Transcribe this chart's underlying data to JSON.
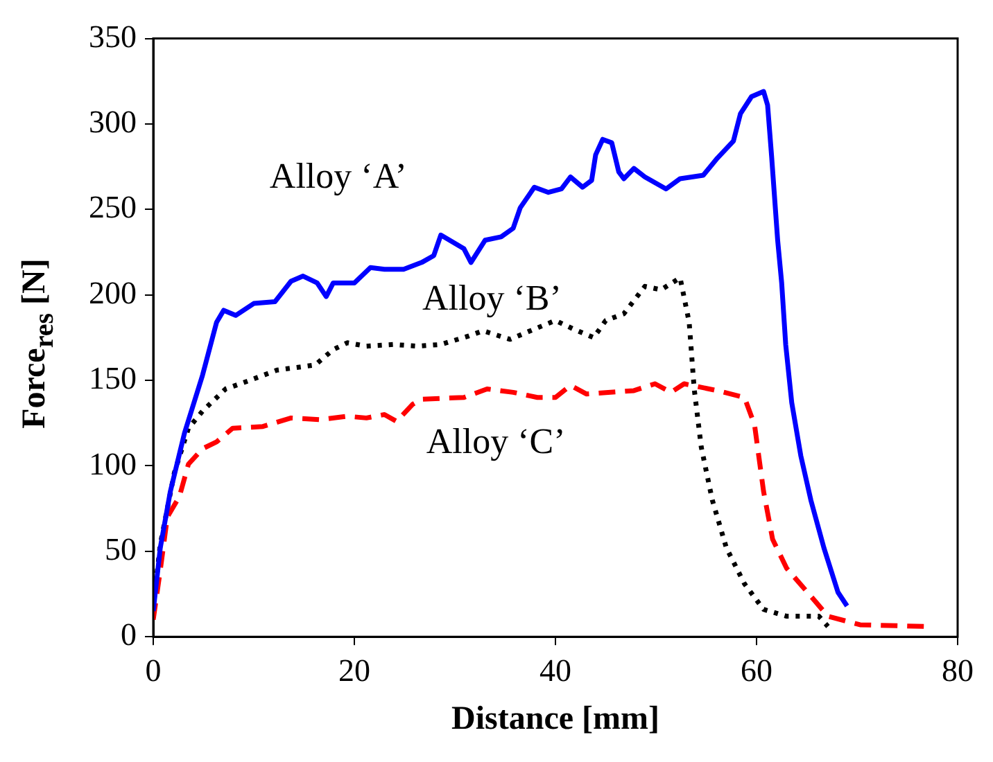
{
  "chart_data": {
    "type": "line",
    "xlabel": "Distance [mm]",
    "ylabel": "Force$_{res}$ [N]",
    "xlim": [
      0,
      80
    ],
    "xticks": [
      0,
      20,
      40,
      60,
      80
    ],
    "ylim": [
      0,
      350
    ],
    "yticks": [
      0,
      50,
      100,
      150,
      200,
      250,
      300,
      350
    ],
    "grid": false,
    "legend": false,
    "marker": "none",
    "series": [
      {
        "name": "Alloy ‘A’",
        "color": "#0000ff",
        "line_style": "solid",
        "x": [
          0,
          0.7,
          1.7,
          3.1,
          4.9,
          6.3,
          7,
          8.2,
          10,
          12.1,
          13.7,
          14.9,
          16.3,
          17.2,
          17.9,
          20,
          21.6,
          23,
          24.9,
          26.7,
          27.9,
          28.6,
          30.9,
          31.6,
          33,
          34.6,
          35.8,
          36.5,
          37.9,
          39.3,
          40.6,
          41.5,
          42.7,
          43.6,
          44,
          44.7,
          45.6,
          46.3,
          46.8,
          47.8,
          48.9,
          51,
          52.4,
          54.7,
          56.1,
          57.7,
          58.4,
          59.5,
          60.7,
          61.1,
          61.5,
          62.1,
          62.5,
          62.9,
          63.5,
          64.4,
          65.4,
          66.7,
          68.1,
          69
        ],
        "values": [
          15,
          52,
          85,
          119,
          153,
          184,
          191,
          188,
          195,
          196,
          208,
          211,
          207,
          199,
          207,
          207,
          216,
          215,
          215,
          219,
          223,
          235,
          227,
          219,
          232,
          234,
          239,
          251,
          263,
          260,
          262,
          269,
          263,
          267,
          282,
          291,
          289,
          272,
          268,
          274,
          269,
          262,
          268,
          270,
          280,
          290,
          306,
          316,
          319,
          311,
          281,
          232,
          207,
          171,
          137,
          106,
          80,
          52,
          26,
          18
        ]
      },
      {
        "name": "Alloy ‘B’",
        "color": "#000000",
        "line_style": "dotted",
        "x": [
          0,
          0.7,
          2.1,
          3.5,
          4.9,
          7.2,
          9.6,
          12.3,
          16.1,
          17.9,
          19.3,
          21.2,
          23.9,
          26.3,
          28.6,
          31.4,
          32.8,
          35.5,
          37.9,
          40,
          41.8,
          43.8,
          45,
          46.8,
          48.9,
          50.5,
          52.4,
          53.3,
          53.8,
          54.5,
          55.6,
          57,
          58.8,
          60.7,
          63,
          66.2,
          67.1
        ],
        "values": [
          18,
          54,
          96,
          122,
          132,
          145,
          150,
          156,
          159,
          168,
          172,
          170,
          171,
          170,
          171,
          176,
          179,
          174,
          180,
          185,
          180,
          175,
          185,
          189,
          205,
          203,
          210,
          184,
          145,
          111,
          80,
          52,
          31,
          16,
          12,
          12,
          6
        ]
      },
      {
        "name": "Alloy ‘C’",
        "color": "#ff0000",
        "line_style": "dashed",
        "x": [
          0,
          0.7,
          1.4,
          2.6,
          3.5,
          4.9,
          6.3,
          7.9,
          10.9,
          13.7,
          16.5,
          19.3,
          21.2,
          23,
          24.2,
          25.8,
          26.7,
          30.9,
          33.2,
          35.8,
          38.2,
          40,
          41.5,
          43.1,
          47.8,
          49.9,
          51.5,
          52.8,
          56.1,
          58.8,
          59.8,
          60.7,
          61.6,
          63,
          65.8,
          67.1,
          70.3,
          76.8
        ],
        "values": [
          10,
          39,
          70,
          82,
          101,
          110,
          114,
          122,
          123,
          128,
          127,
          129,
          128,
          130,
          126,
          136,
          139,
          140,
          145,
          143,
          140,
          140,
          147,
          142,
          144,
          148,
          143,
          148,
          144,
          140,
          124,
          85,
          57,
          40,
          21,
          12,
          7,
          6
        ]
      }
    ]
  }
}
